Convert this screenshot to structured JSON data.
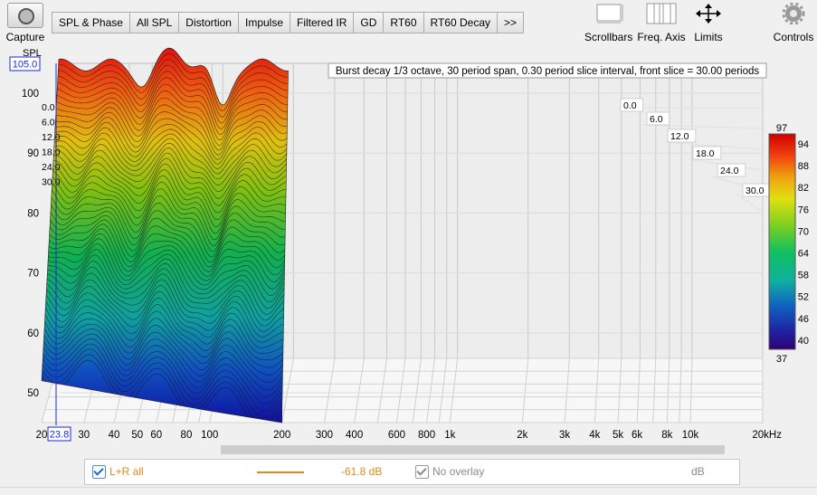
{
  "toolbar": {
    "capture_label": "Capture",
    "tabs": [
      "SPL & Phase",
      "All SPL",
      "Distortion",
      "Impulse",
      "Filtered IR",
      "GD",
      "RT60",
      "RT60 Decay",
      ">>"
    ],
    "scrollbars_label": "Scrollbars",
    "freq_axis_label": "Freq. Axis",
    "limits_label": "Limits",
    "controls_label": "Controls"
  },
  "plot": {
    "info_text": "Burst decay 1/3 octave, 30 period span, 0.30 period slice interval,  front slice = 30.00 periods",
    "y_axis_title": "SPL",
    "y_cursor_value": "105.0",
    "x_cursor_value": "23.8",
    "y_ticks": [
      {
        "v": 100,
        "t": "100"
      },
      {
        "v": 90,
        "t": "90"
      },
      {
        "v": 80,
        "t": "80"
      },
      {
        "v": 70,
        "t": "70"
      },
      {
        "v": 60,
        "t": "60"
      },
      {
        "v": 50,
        "t": "50"
      }
    ],
    "x_ticks": [
      {
        "f": 20,
        "t": "20"
      },
      {
        "f": 30,
        "t": "30"
      },
      {
        "f": 40,
        "t": "40"
      },
      {
        "f": 50,
        "t": "50"
      },
      {
        "f": 60,
        "t": "60"
      },
      {
        "f": 80,
        "t": "80"
      },
      {
        "f": 100,
        "t": "100"
      },
      {
        "f": 200,
        "t": "200"
      },
      {
        "f": 300,
        "t": "300"
      },
      {
        "f": 400,
        "t": "400"
      },
      {
        "f": 600,
        "t": "600"
      },
      {
        "f": 800,
        "t": "800"
      },
      {
        "f": 1000,
        "t": "1k"
      },
      {
        "f": 2000,
        "t": "2k"
      },
      {
        "f": 3000,
        "t": "3k"
      },
      {
        "f": 4000,
        "t": "4k"
      },
      {
        "f": 5000,
        "t": "5k"
      },
      {
        "f": 6000,
        "t": "6k"
      },
      {
        "f": 8000,
        "t": "8k"
      },
      {
        "f": 10000,
        "t": "10k"
      },
      {
        "f": 20000,
        "t": "20kHz"
      }
    ],
    "left_period_labels": [
      "0.0",
      "6.0",
      "12.0",
      "18.0",
      "24.0",
      "30.0"
    ],
    "right_period_labels": [
      "0.0",
      "6.0",
      "12.0",
      "18.0",
      "24.0",
      "30.0"
    ],
    "colorbar": {
      "top_label": "97",
      "bottom_label": "37",
      "ticks": [
        "94",
        "88",
        "82",
        "76",
        "70",
        "64",
        "58",
        "52",
        "46",
        "40"
      ]
    }
  },
  "legend": {
    "trace_name": "L+R all",
    "trace_color": "#e08a1e",
    "trace_value": "-61.8 dB",
    "overlay_label": "No overlay",
    "overlay_unit": "dB"
  }
}
